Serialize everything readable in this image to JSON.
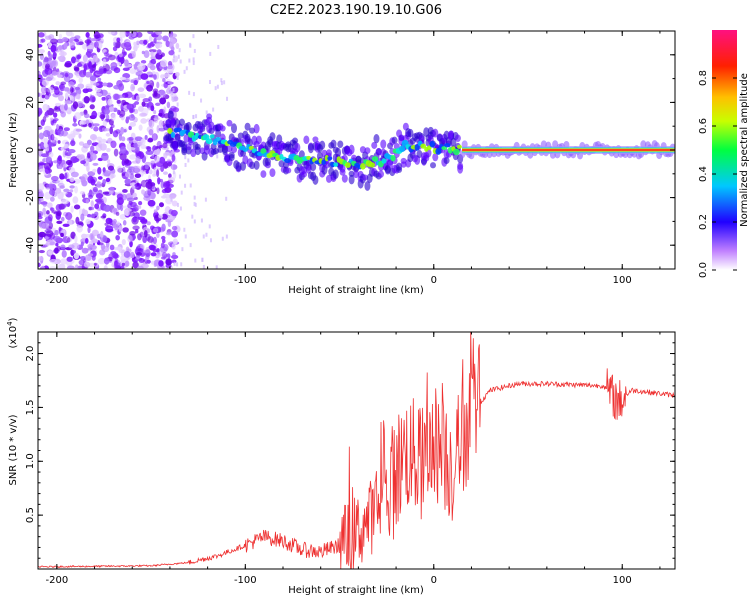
{
  "chart_data": [
    {
      "type": "heatmap",
      "title": "C2E2.2023.190.19.10.G06",
      "xlabel": "Height of straight line (km)",
      "ylabel": "Frequency (Hz)",
      "xlim": [
        -210,
        128
      ],
      "ylim": [
        -50,
        50
      ],
      "xticks": [
        -200,
        -100,
        0,
        100
      ],
      "xtick_labels": [
        "-200",
        "-100",
        "0",
        "100"
      ],
      "yticks": [
        -40,
        -20,
        0,
        20,
        40
      ],
      "ytick_labels": [
        "-40",
        "-20",
        "0",
        "20",
        "40"
      ],
      "ridge": {
        "description_points": [
          {
            "x": -140,
            "y": 8
          },
          {
            "x": -120,
            "y": 5
          },
          {
            "x": -100,
            "y": 1
          },
          {
            "x": -80,
            "y": -3
          },
          {
            "x": -60,
            "y": -4
          },
          {
            "x": -40,
            "y": -6
          },
          {
            "x": -25,
            "y": -4
          },
          {
            "x": -15,
            "y": 2
          },
          {
            "x": 0,
            "y": 1
          },
          {
            "x": 15,
            "y": 0
          },
          {
            "x": 128,
            "y": 0
          }
        ],
        "noise_region_xmax": -140
      },
      "colorbar": {
        "label": "Normalized spectral amplitude",
        "range": [
          0.0,
          1.0
        ],
        "ticks": [
          0.0,
          0.2,
          0.4,
          0.6,
          0.8
        ],
        "tick_labels": [
          "0.0",
          "0.2",
          "0.4",
          "0.6",
          "0.8"
        ],
        "colors": [
          "#ffffff",
          "#7a00ff",
          "#0000ff",
          "#00ffff",
          "#00ff00",
          "#ffff00",
          "#ff8000",
          "#ff0000",
          "#ff1080"
        ]
      },
      "line_color": "#ff2020"
    },
    {
      "type": "line",
      "title": "",
      "xlabel": "Height of straight line (km)",
      "ylabel": "SNR (10 * v/v)",
      "scale_label": "(x10",
      "scale_exponent": "4",
      "scale_close": ")",
      "xlim": [
        -210,
        128
      ],
      "ylim": [
        0,
        2.2
      ],
      "xticks": [
        -200,
        -100,
        0,
        100
      ],
      "xtick_labels": [
        "-200",
        "-100",
        "0",
        "100"
      ],
      "yticks": [
        0.5,
        1.0,
        1.5,
        2.0
      ],
      "ytick_labels": [
        "0.5",
        "1.0",
        "1.5",
        "2.0"
      ],
      "series": [
        {
          "name": "SNR",
          "color": "#ee3030",
          "envelope": [
            {
              "x": -210,
              "y": 0.02
            },
            {
              "x": -150,
              "y": 0.03
            },
            {
              "x": -130,
              "y": 0.06
            },
            {
              "x": -115,
              "y": 0.12
            },
            {
              "x": -100,
              "y": 0.22
            },
            {
              "x": -90,
              "y": 0.3
            },
            {
              "x": -80,
              "y": 0.26
            },
            {
              "x": -70,
              "y": 0.18
            },
            {
              "x": -60,
              "y": 0.16
            },
            {
              "x": -50,
              "y": 0.22
            },
            {
              "x": -40,
              "y": 0.35
            },
            {
              "x": -30,
              "y": 0.55
            },
            {
              "x": -22,
              "y": 0.8
            },
            {
              "x": -15,
              "y": 1.1
            },
            {
              "x": -5,
              "y": 0.95
            },
            {
              "x": 0,
              "y": 1.2
            },
            {
              "x": 10,
              "y": 0.95
            },
            {
              "x": 20,
              "y": 1.45
            },
            {
              "x": 30,
              "y": 1.66
            },
            {
              "x": 45,
              "y": 1.72
            },
            {
              "x": 60,
              "y": 1.72
            },
            {
              "x": 75,
              "y": 1.71
            },
            {
              "x": 90,
              "y": 1.7
            },
            {
              "x": 98,
              "y": 1.55
            },
            {
              "x": 105,
              "y": 1.66
            },
            {
              "x": 115,
              "y": 1.64
            },
            {
              "x": 128,
              "y": 1.61
            }
          ]
        }
      ]
    }
  ]
}
